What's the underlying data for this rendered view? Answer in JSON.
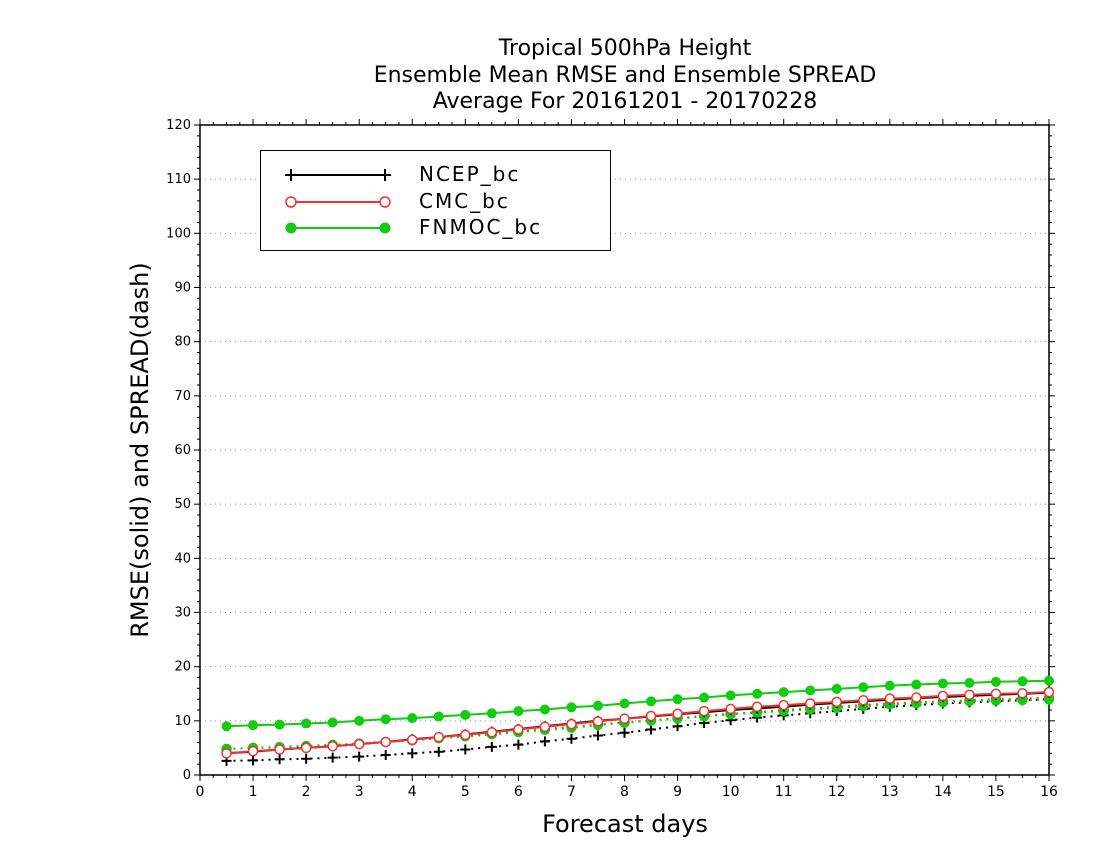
{
  "chart_data": {
    "type": "line",
    "title": [
      "Tropical 500hPa Height",
      "Ensemble Mean RMSE and Ensemble SPREAD",
      "Average For 20161201 - 20170228"
    ],
    "xlabel": "Forecast days",
    "ylabel": "RMSE(solid) and SPREAD(dash)",
    "xlim": [
      0,
      16
    ],
    "ylim": [
      0,
      120
    ],
    "xticks": [
      "0",
      "1",
      "2",
      "3",
      "4",
      "5",
      "6",
      "7",
      "8",
      "9",
      "10",
      "11",
      "12",
      "13",
      "14",
      "15",
      "16"
    ],
    "yticks": [
      "0",
      "10",
      "20",
      "30",
      "40",
      "50",
      "60",
      "70",
      "80",
      "90",
      "100",
      "110",
      "120"
    ],
    "grid": "horizontal dotted",
    "legend_position": "top-left",
    "x": [
      0.5,
      1,
      1.5,
      2,
      2.5,
      3,
      3.5,
      4,
      4.5,
      5,
      5.5,
      6,
      6.5,
      7,
      7.5,
      8,
      8.5,
      9,
      9.5,
      10,
      10.5,
      11,
      11.5,
      12,
      12.5,
      13,
      13.5,
      14,
      14.5,
      15,
      15.5,
      16
    ],
    "series": [
      {
        "name": "NCEP_bc",
        "color": "#000000",
        "marker": "plus",
        "legend": true,
        "values": [
          4.0,
          4.3,
          4.7,
          5.0,
          5.3,
          5.7,
          6.1,
          6.6,
          7.0,
          7.5,
          8.0,
          8.5,
          9.0,
          9.5,
          10.0,
          10.4,
          10.8,
          11.2,
          11.6,
          12.0,
          12.3,
          12.6,
          13.0,
          13.3,
          13.6,
          13.9,
          14.2,
          14.4,
          14.6,
          14.8,
          15.0,
          15.2
        ]
      },
      {
        "name": "CMC_bc",
        "color": "#ee3333",
        "marker": "open-circle",
        "legend": true,
        "values": [
          4.0,
          4.4,
          4.7,
          5.0,
          5.3,
          5.7,
          6.1,
          6.5,
          7.0,
          7.4,
          7.9,
          8.4,
          8.9,
          9.4,
          9.9,
          10.4,
          10.9,
          11.3,
          11.8,
          12.2,
          12.6,
          12.9,
          13.2,
          13.5,
          13.8,
          14.1,
          14.3,
          14.6,
          14.8,
          15.0,
          15.1,
          15.3
        ]
      },
      {
        "name": "FNMOC_bc",
        "color": "#11cc11",
        "marker": "filled-circle",
        "legend": true,
        "values": [
          9.0,
          9.2,
          9.3,
          9.5,
          9.7,
          10.0,
          10.3,
          10.5,
          10.8,
          11.1,
          11.4,
          11.8,
          12.1,
          12.5,
          12.8,
          13.2,
          13.6,
          14.0,
          14.3,
          14.7,
          15.0,
          15.3,
          15.6,
          15.9,
          16.2,
          16.5,
          16.7,
          16.9,
          17.0,
          17.2,
          17.3,
          17.4
        ]
      },
      {
        "name": "NCEP_bc spread",
        "color": "#000000",
        "marker": "plus",
        "dashed": true,
        "legend": false,
        "values": [
          2.6,
          2.7,
          2.9,
          3.0,
          3.2,
          3.4,
          3.7,
          4.0,
          4.3,
          4.7,
          5.2,
          5.6,
          6.2,
          6.7,
          7.3,
          7.8,
          8.4,
          9.0,
          9.6,
          10.1,
          10.6,
          11.0,
          11.4,
          11.8,
          12.2,
          12.6,
          12.9,
          13.2,
          13.4,
          13.6,
          13.8,
          14.0
        ]
      },
      {
        "name": "CMC_bc spread",
        "color": "#ee3333",
        "marker": "open-circle",
        "dashed": true,
        "legend": false,
        "values": [
          4.8,
          5.0,
          5.1,
          5.3,
          5.5,
          5.8,
          6.1,
          6.4,
          6.8,
          7.2,
          7.6,
          8.0,
          8.5,
          8.9,
          9.3,
          9.7,
          10.1,
          10.5,
          10.9,
          11.3,
          11.6,
          12.0,
          12.3,
          12.6,
          12.9,
          13.2,
          13.4,
          13.6,
          13.8,
          14.0,
          14.1,
          14.2
        ]
      },
      {
        "name": "FNMOC_bc spread",
        "color": "#11cc11",
        "marker": "filled-circle",
        "dashed": true,
        "legend": false,
        "values": [
          4.8,
          5.0,
          5.2,
          5.4,
          5.6,
          5.8,
          6.1,
          6.4,
          6.8,
          7.1,
          7.5,
          7.9,
          8.3,
          8.7,
          9.2,
          9.6,
          10.0,
          10.4,
          10.8,
          11.2,
          11.5,
          11.8,
          12.1,
          12.4,
          12.7,
          13.0,
          13.2,
          13.4,
          13.6,
          13.7,
          13.8,
          13.9
        ]
      }
    ]
  }
}
